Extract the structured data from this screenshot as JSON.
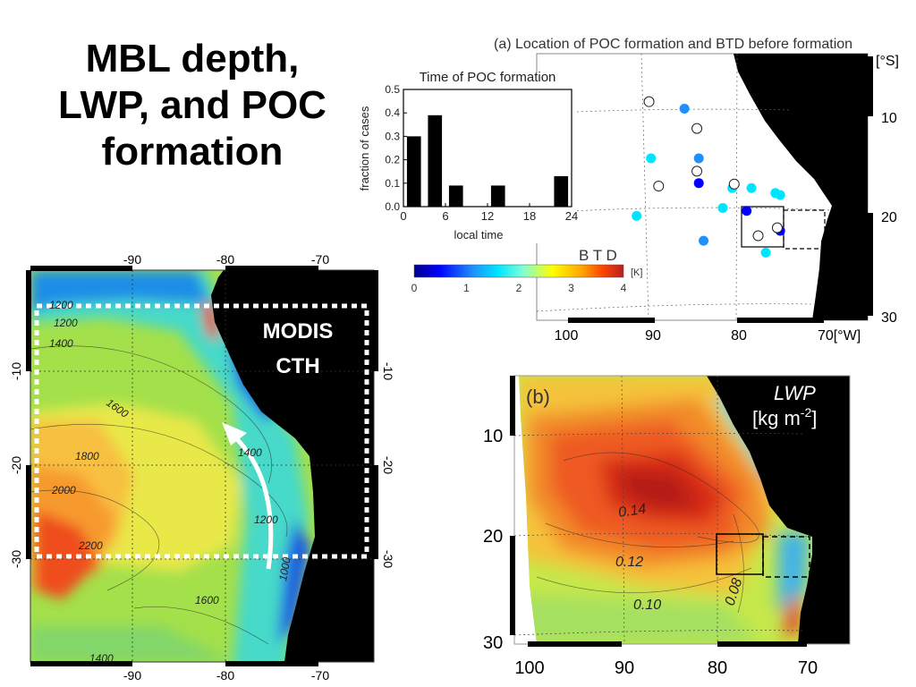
{
  "slide": {
    "title_lines": [
      "MBL depth,",
      "LWP, and POC",
      "formation"
    ]
  },
  "colors": {
    "background": "#ffffff",
    "land": "#000000",
    "white_overlay": "#ffffff",
    "histogram_bar": "#000000",
    "btd_colormap": [
      "#00008b",
      "#0000ff",
      "#1e90ff",
      "#00e5ff",
      "#7fffd4",
      "#ffff00",
      "#ffa500",
      "#ff4500",
      "#b22222"
    ]
  },
  "panel_cth": {
    "overlay_label_lines": [
      "MODIS",
      "CTH"
    ],
    "lon_ticks": [
      "-90",
      "-80",
      "-70"
    ],
    "lat_ticks": [
      "-10",
      "-20",
      "-30"
    ],
    "contour_labels": [
      "1200",
      "1200",
      "1400",
      "1600",
      "1800",
      "2000",
      "2200",
      "1400",
      "1200",
      "1000",
      "1600",
      "1400"
    ]
  },
  "panel_a": {
    "title": "(a)  Location of POC formation and BTD before formation",
    "lat_unit": "[°S]",
    "lat_ticks": [
      "10",
      "20",
      "30"
    ],
    "lon_ticks": [
      "100",
      "90",
      "80"
    ],
    "lon_last": "70[°W]",
    "colorbar_title": "B T D",
    "colorbar_unit": "[K]",
    "colorbar_ticks": [
      "0",
      "1",
      "2",
      "3",
      "4"
    ],
    "points_filled": [
      {
        "lon": 85.5,
        "lat": 9.5,
        "btd": 1.0
      },
      {
        "lon": 89,
        "lat": 14.5,
        "btd": 1.5
      },
      {
        "lon": 84,
        "lat": 14.5,
        "btd": 1.0
      },
      {
        "lon": 84,
        "lat": 17,
        "btd": 0.5
      },
      {
        "lon": 80.5,
        "lat": 17.5,
        "btd": 1.5
      },
      {
        "lon": 78.5,
        "lat": 17.5,
        "btd": 1.6
      },
      {
        "lon": 76,
        "lat": 18,
        "btd": 1.5
      },
      {
        "lon": 75.5,
        "lat": 18.2,
        "btd": 1.6
      },
      {
        "lon": 81.5,
        "lat": 19.5,
        "btd": 1.5
      },
      {
        "lon": 79,
        "lat": 19.8,
        "btd": 0.4
      },
      {
        "lon": 90.5,
        "lat": 20.3,
        "btd": 1.5
      },
      {
        "lon": 75.5,
        "lat": 21.8,
        "btd": 0.6
      },
      {
        "lon": 83.5,
        "lat": 22.8,
        "btd": 1.0
      },
      {
        "lon": 77,
        "lat": 24,
        "btd": 1.5
      }
    ],
    "points_open": [
      {
        "lon": 89.2,
        "lat": 8.8
      },
      {
        "lon": 84.2,
        "lat": 11.5
      },
      {
        "lon": 88.2,
        "lat": 17.3
      },
      {
        "lon": 84.2,
        "lat": 15.8
      },
      {
        "lon": 80.3,
        "lat": 17.1
      },
      {
        "lon": 77.8,
        "lat": 22.3
      },
      {
        "lon": 75.8,
        "lat": 21.5
      }
    ]
  },
  "chart_data": [
    {
      "type": "bar",
      "title": "Time of POC formation",
      "xlabel": "local time",
      "ylabel": "fraction of cases",
      "x_centers": [
        1.5,
        4.5,
        7.5,
        13.5,
        22.5
      ],
      "values": [
        0.3,
        0.39,
        0.09,
        0.09,
        0.13
      ],
      "bar_width_hours": 2,
      "xlim": [
        0,
        24
      ],
      "ylim": [
        0,
        0.5
      ],
      "xticks": [
        "0",
        "6",
        "12",
        "18",
        "24"
      ],
      "yticks": [
        "0.0",
        "0.1",
        "0.2",
        "0.3",
        "0.4",
        "0.5"
      ]
    }
  ],
  "panel_b": {
    "label": "(b)",
    "var_name": "LWP",
    "unit": "[kg m",
    "unit_exp": "-2",
    "unit_close": "]",
    "lat_ticks": [
      "10",
      "20",
      "30"
    ],
    "lon_ticks": [
      "100",
      "90",
      "80",
      "70"
    ],
    "contour_labels": [
      "0.14",
      "0.12",
      "0.10",
      "0.08"
    ]
  }
}
